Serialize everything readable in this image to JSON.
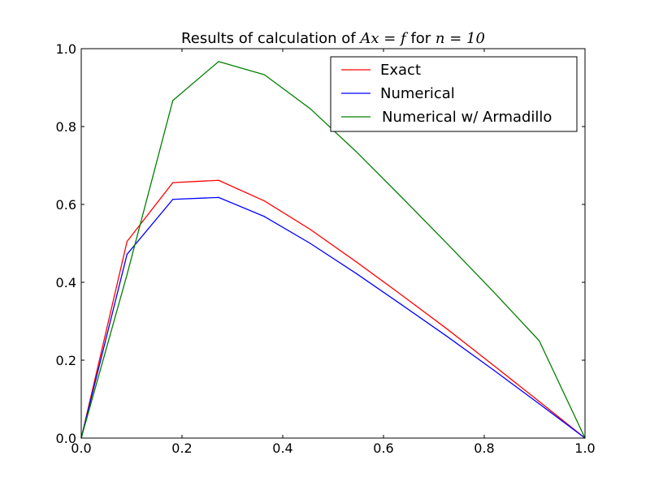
{
  "chart_data": {
    "type": "line",
    "title": {
      "prefix": "Results of calculation of ",
      "math1": "Ax = f",
      "middle": " for ",
      "math2": "n = 10"
    },
    "xlabel": "",
    "ylabel": "",
    "xlim": [
      0.0,
      1.0
    ],
    "ylim": [
      0.0,
      1.0
    ],
    "xticks": [
      0.0,
      0.2,
      0.4,
      0.6,
      0.8,
      1.0
    ],
    "yticks": [
      0.0,
      0.2,
      0.4,
      0.6,
      0.8,
      1.0
    ],
    "xtick_labels": [
      "0.0",
      "0.2",
      "0.4",
      "0.6",
      "0.8",
      "1.0"
    ],
    "ytick_labels": [
      "0.0",
      "0.2",
      "0.4",
      "0.6",
      "0.8",
      "1.0"
    ],
    "grid": false,
    "legend_position": "top-right",
    "x": [
      0.0,
      0.0909,
      0.1818,
      0.2727,
      0.3636,
      0.4545,
      0.5455,
      0.6364,
      0.7273,
      0.8182,
      0.9091,
      1.0
    ],
    "series": [
      {
        "name": "Exact",
        "color": "#ff0000",
        "values": [
          0.0,
          0.505,
          0.656,
          0.662,
          0.609,
          0.536,
          0.453,
          0.367,
          0.279,
          0.187,
          0.094,
          0.0
        ]
      },
      {
        "name": "Numerical",
        "color": "#0000ff",
        "values": [
          0.0,
          0.472,
          0.613,
          0.618,
          0.569,
          0.5,
          0.423,
          0.342,
          0.26,
          0.175,
          0.088,
          0.0
        ]
      },
      {
        "name": "Numerical w/ Armadillo",
        "color": "#008000",
        "values": [
          0.0,
          0.42,
          0.867,
          0.967,
          0.933,
          0.846,
          0.736,
          0.618,
          0.498,
          0.376,
          0.25,
          0.0
        ]
      }
    ]
  }
}
